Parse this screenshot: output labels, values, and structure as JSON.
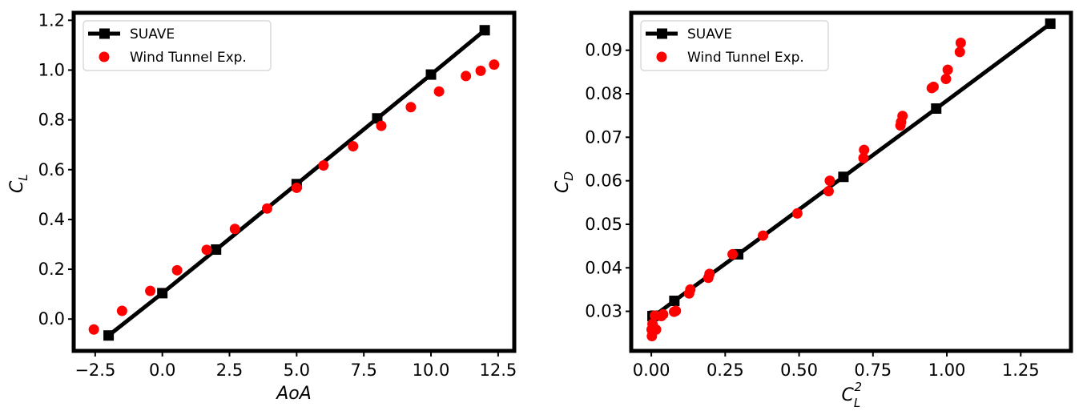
{
  "chart_data": [
    {
      "type": "line+scatter",
      "xlabel": "AoA",
      "ylabel_main": "C",
      "ylabel_sub": "L",
      "xlim": [
        -3.3,
        13.1
      ],
      "ylim": [
        -0.128,
        1.23
      ],
      "xticks": [
        -2.5,
        0.0,
        2.5,
        5.0,
        7.5,
        10.0,
        12.5
      ],
      "xtick_labels": [
        "−2.5",
        "0.0",
        "2.5",
        "5.0",
        "7.5",
        "10.0",
        "12.5"
      ],
      "yticks": [
        0.0,
        0.2,
        0.4,
        0.6,
        0.8,
        1.0,
        1.2
      ],
      "ytick_labels": [
        "0.0",
        "0.2",
        "0.4",
        "0.6",
        "0.8",
        "1.0",
        "1.2"
      ],
      "legend_position": "top-left",
      "series": [
        {
          "name": "SUAVE",
          "kind": "line-square-markers",
          "color": "#000000",
          "x": [
            -2.0,
            0.0,
            2.0,
            5.0,
            8.0,
            10.0,
            12.0
          ],
          "y": [
            -0.066,
            0.104,
            0.279,
            0.542,
            0.806,
            0.982,
            1.16
          ]
        },
        {
          "name": "Wind Tunnel Exp.",
          "kind": "scatter",
          "color": "#ff0000",
          "x": [
            -2.55,
            -1.5,
            -0.45,
            0.55,
            1.65,
            2.7,
            3.9,
            5.0,
            6.0,
            7.1,
            8.15,
            9.25,
            10.3,
            11.3,
            11.85,
            12.35
          ],
          "y": [
            -0.042,
            0.033,
            0.113,
            0.196,
            0.278,
            0.362,
            0.444,
            0.527,
            0.617,
            0.694,
            0.776,
            0.851,
            0.914,
            0.976,
            0.997,
            1.022
          ]
        }
      ]
    },
    {
      "type": "line+scatter",
      "xlabel_main": "C",
      "xlabel_sub": "L",
      "xlabel_sup": "2",
      "ylabel_main": "C",
      "ylabel_sub": "D",
      "xlim": [
        -0.068,
        1.42
      ],
      "ylim": [
        0.0209,
        0.0986
      ],
      "xticks": [
        0.0,
        0.25,
        0.5,
        0.75,
        1.0,
        1.25
      ],
      "xtick_labels": [
        "0.00",
        "0.25",
        "0.50",
        "0.75",
        "1.00",
        "1.25"
      ],
      "yticks": [
        0.03,
        0.04,
        0.05,
        0.06,
        0.07,
        0.08,
        0.09
      ],
      "ytick_labels": [
        "0.03",
        "0.04",
        "0.05",
        "0.06",
        "0.07",
        "0.08",
        "0.09"
      ],
      "legend_position": "top-left",
      "series": [
        {
          "name": "SUAVE",
          "kind": "line-square-markers",
          "color": "#000000",
          "x": [
            0.004,
            0.011,
            0.078,
            0.294,
            0.65,
            0.964,
            1.35
          ],
          "y": [
            0.0289,
            0.029,
            0.0324,
            0.0431,
            0.0609,
            0.0766,
            0.0961
          ]
        },
        {
          "name": "Wind Tunnel Exp.",
          "kind": "scatter",
          "color": "#ff0000",
          "x": [
            0.002,
            0.001,
            0.004,
            0.012,
            0.016,
            0.012,
            0.034,
            0.04,
            0.077,
            0.083,
            0.128,
            0.132,
            0.193,
            0.197,
            0.275,
            0.378,
            0.494,
            0.6,
            0.604,
            0.718,
            0.72,
            0.843,
            0.845,
            0.85,
            0.949,
            0.955,
            0.997,
            1.003,
            1.044,
            1.047
          ],
          "y": [
            0.0243,
            0.0258,
            0.0271,
            0.026,
            0.0258,
            0.029,
            0.0289,
            0.0293,
            0.0299,
            0.0301,
            0.0341,
            0.035,
            0.0377,
            0.0386,
            0.0431,
            0.0474,
            0.0525,
            0.0576,
            0.06,
            0.0652,
            0.0671,
            0.0727,
            0.0735,
            0.0749,
            0.0813,
            0.0816,
            0.0834,
            0.0855,
            0.0896,
            0.0917
          ]
        }
      ]
    }
  ]
}
